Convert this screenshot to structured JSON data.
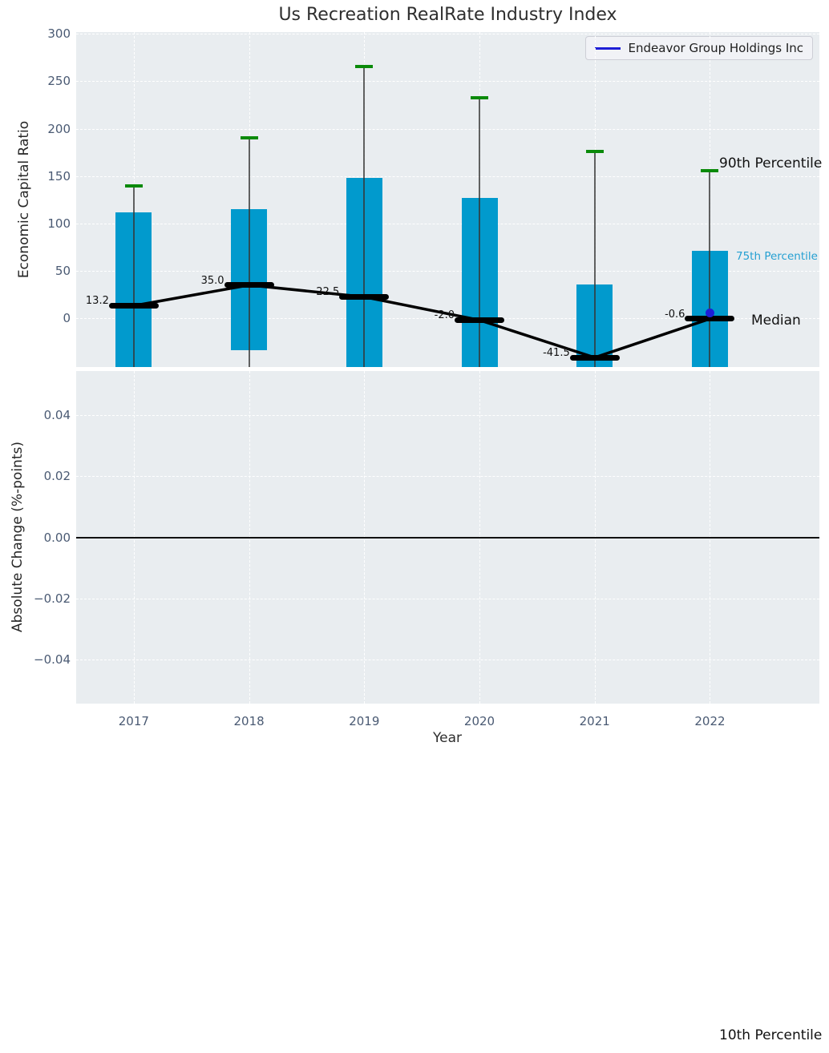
{
  "title": "Us Recreation RealRate Industry Index",
  "legend": {
    "label": "Endeavor Group Holdings Inc"
  },
  "annotations": {
    "p90": "90th Percentile",
    "p75": "75th Percentile",
    "median": "Median",
    "p10": "10th Percentile"
  },
  "colors": {
    "bar": "#019acd",
    "cap_green": "#0a8a0a",
    "whisker": "rgba(60,60,60,0.6)",
    "median": "#000000",
    "endeavor_blue": "#1e1ed6",
    "axes_bg": "#e9edf0",
    "grid": "#ffffff",
    "tick_text": "#4a5a73",
    "p75_label": "#25a0d2"
  },
  "chart_data": [
    {
      "type": "box",
      "title": "Us Recreation RealRate Industry Index",
      "xlabel": "Year",
      "ylabel": "Economic Capital Ratio",
      "categories": [
        "2017",
        "2018",
        "2019",
        "2020",
        "2021",
        "2022"
      ],
      "ylim": [
        -51.5,
        302
      ],
      "yticks": [
        0,
        50,
        100,
        150,
        200,
        250,
        300
      ],
      "ytick_labels": [
        "0",
        "50",
        "100",
        "150",
        "200",
        "250",
        "300"
      ],
      "grid": true,
      "legend_position": "upper right",
      "series": {
        "p90": [
          140,
          190,
          266,
          233,
          176,
          156
        ],
        "p75": [
          112,
          115.5,
          148.5,
          127,
          36,
          71
        ],
        "median": [
          13.2,
          35.0,
          22.5,
          -2.0,
          -41.5,
          -0.6
        ],
        "p25": [
          null,
          -33.5,
          null,
          null,
          null,
          null
        ]
      },
      "median_labels": [
        "13.2",
        "35.0",
        "22.5",
        "-2.0",
        "-41.5",
        "-0.6"
      ],
      "note_p25_null_means": "box bottom clipped below visible axis range",
      "endeavor_point": {
        "category": "2022",
        "value": 5.5
      }
    },
    {
      "type": "line",
      "ylabel": "Absolute Change (%-points)",
      "ylim": [
        -0.0545,
        0.0545
      ],
      "yticks": [
        0.04,
        0.02,
        0.0,
        -0.02,
        -0.04
      ],
      "ytick_labels": [
        "0.04",
        "0.02",
        "0.00",
        "−0.02",
        "−0.04"
      ],
      "zero_line": 0.0,
      "grid": true,
      "series": []
    }
  ]
}
